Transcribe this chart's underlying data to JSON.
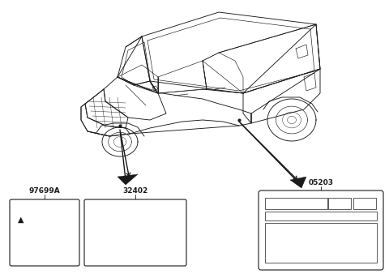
{
  "bg_color": "#ffffff",
  "line_color": "#000000",
  "label_97699A": "97699A",
  "label_32402": "32402",
  "label_05203": "05203",
  "figsize": [
    4.8,
    3.38
  ],
  "dpi": 100
}
